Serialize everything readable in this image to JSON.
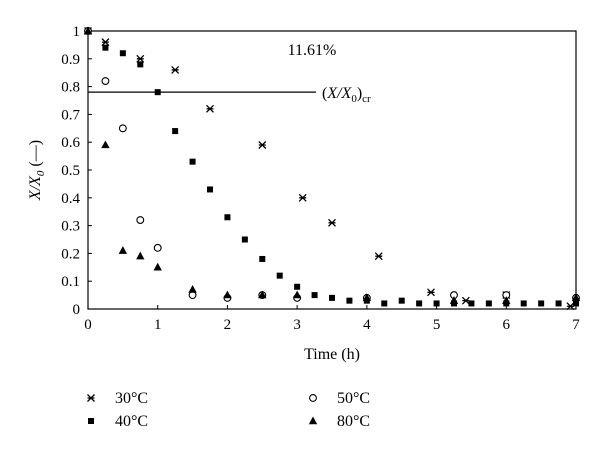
{
  "chart_data": {
    "type": "scatter",
    "xlabel": "Time (h)",
    "ylabel": "X/X0 (—)",
    "xlim": [
      0,
      7
    ],
    "ylim": [
      0,
      1
    ],
    "xticks": [
      "0",
      "1",
      "2",
      "3",
      "4",
      "5",
      "6",
      "7"
    ],
    "yticks": [
      "0",
      "0.1",
      "0.2",
      "0.3",
      "0.4",
      "0.5",
      "0.6",
      "0.7",
      "0.8",
      "0.9",
      "1"
    ],
    "grid": false,
    "legend_position": "bottom",
    "annotations": {
      "percent": "11.61%",
      "critical_label": "(X/X0)cr",
      "critical_value": 0.78,
      "critical_line_x_end": 3.27
    },
    "series": [
      {
        "name": "30°C",
        "marker": "star",
        "x": [
          0,
          0.25,
          0.75,
          1.25,
          1.75,
          2.5,
          3.08,
          3.5,
          4.17,
          4.92,
          5.42,
          6.0,
          6.92
        ],
        "y": [
          1.0,
          0.96,
          0.9,
          0.86,
          0.72,
          0.59,
          0.4,
          0.31,
          0.19,
          0.06,
          0.03,
          0.05,
          0.01
        ]
      },
      {
        "name": "40°C",
        "marker": "square",
        "x": [
          0,
          0.25,
          0.5,
          0.75,
          1.0,
          1.25,
          1.5,
          1.75,
          2.0,
          2.25,
          2.5,
          2.75,
          3.0,
          3.25,
          3.5,
          3.75,
          4.0,
          4.25,
          4.5,
          4.75,
          5.0,
          5.25,
          5.5,
          5.75,
          6.0,
          6.25,
          6.5,
          6.75,
          7.0
        ],
        "y": [
          1.0,
          0.94,
          0.92,
          0.88,
          0.78,
          0.64,
          0.53,
          0.43,
          0.33,
          0.25,
          0.18,
          0.12,
          0.08,
          0.05,
          0.04,
          0.03,
          0.03,
          0.02,
          0.03,
          0.02,
          0.02,
          0.02,
          0.02,
          0.02,
          0.02,
          0.02,
          0.02,
          0.02,
          0.02
        ]
      },
      {
        "name": "50°C",
        "marker": "circle",
        "x": [
          0,
          0.25,
          0.5,
          0.75,
          1.0,
          1.5,
          2.0,
          2.5,
          3.0,
          4.0,
          5.25,
          6.0,
          7.0
        ],
        "y": [
          1.0,
          0.82,
          0.65,
          0.32,
          0.22,
          0.05,
          0.04,
          0.05,
          0.04,
          0.04,
          0.05,
          0.05,
          0.04
        ]
      },
      {
        "name": "80°C",
        "marker": "triangle",
        "x": [
          0,
          0.25,
          0.5,
          0.75,
          1.0,
          1.5,
          2.0,
          2.5,
          3.0,
          4.0,
          5.25,
          6.0,
          7.0
        ],
        "y": [
          1.0,
          0.59,
          0.21,
          0.19,
          0.15,
          0.07,
          0.05,
          0.05,
          0.05,
          0.04,
          0.03,
          0.03,
          0.04
        ]
      }
    ]
  }
}
